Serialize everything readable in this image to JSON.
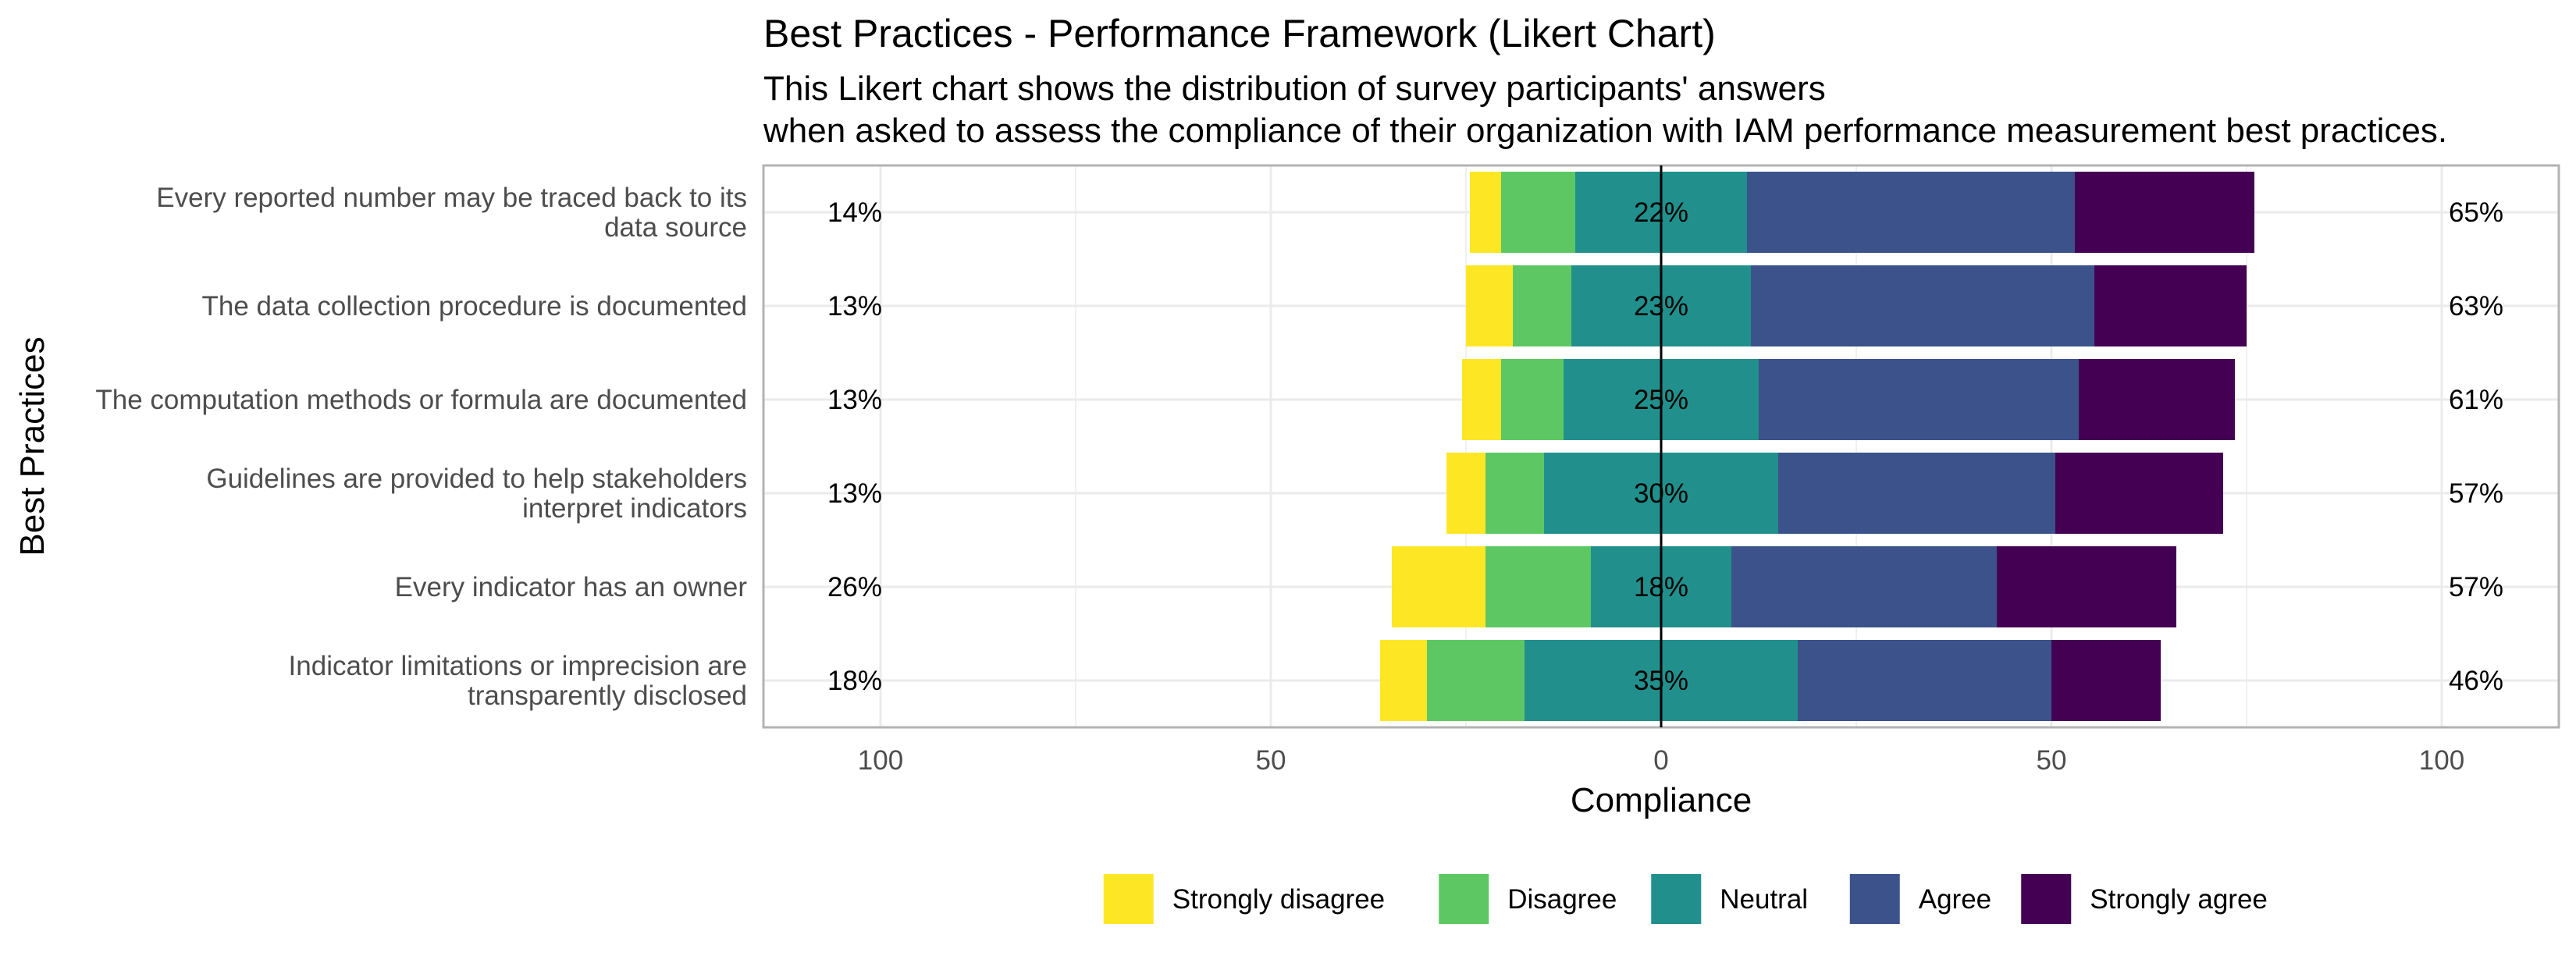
{
  "chart_data": {
    "type": "bar",
    "subtype": "diverging-stacked-likert",
    "orientation": "horizontal",
    "title": "Best Practices - Performance Framework (Likert Chart)",
    "subtitle": [
      "This Likert chart shows the distribution of survey participants' answers",
      "when asked to assess the compliance of their organization with IAM performance measurement best practices."
    ],
    "xlabel": "Compliance",
    "ylabel": "Best Practices",
    "xlim": [
      -115,
      115
    ],
    "xticks": [
      -100,
      -50,
      0,
      50,
      100
    ],
    "xtick_labels": [
      "100",
      "50",
      "0",
      "50",
      "100"
    ],
    "grid": true,
    "legend_position": "bottom",
    "levels": [
      "Strongly disagree",
      "Disagree",
      "Neutral",
      "Agree",
      "Strongly agree"
    ],
    "colors": [
      "#FDE725",
      "#5DC863",
      "#21908C",
      "#3B528B",
      "#440154"
    ],
    "categories": [
      [
        "Every reported number may be traced back to its",
        "data source"
      ],
      [
        "The data collection procedure is documented"
      ],
      [
        "The computation methods or formula are documented"
      ],
      [
        "Guidelines are provided to help stakeholders",
        "interpret indicators"
      ],
      [
        "Every indicator has an owner"
      ],
      [
        "Indicator limitations or imprecision are",
        "transparently disclosed"
      ]
    ],
    "values": [
      [
        4,
        9.5,
        22,
        42,
        23
      ],
      [
        6,
        7.5,
        23,
        44,
        19.5
      ],
      [
        5,
        8,
        25,
        41,
        20
      ],
      [
        5,
        7.5,
        30,
        35.5,
        21.5
      ],
      [
        12,
        13.5,
        18,
        34,
        23
      ],
      [
        6,
        12.5,
        35,
        32.5,
        14
      ]
    ],
    "low_pct_labels": [
      "14%",
      "13%",
      "13%",
      "13%",
      "26%",
      "18%"
    ],
    "neutral_pct_labels": [
      "22%",
      "23%",
      "25%",
      "30%",
      "18%",
      "35%"
    ],
    "high_pct_labels": [
      "65%",
      "63%",
      "61%",
      "57%",
      "57%",
      "46%"
    ]
  }
}
